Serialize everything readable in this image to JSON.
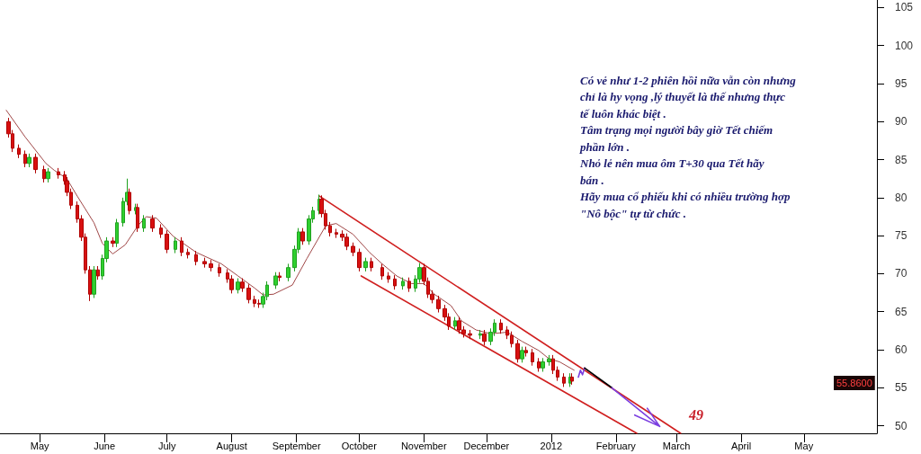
{
  "chart_data": {
    "type": "candlestick",
    "x": [
      "2011-04-16",
      "2011-04-18",
      "2011-04-21",
      "2011-04-24",
      "2011-04-26",
      "2011-04-29",
      "2011-05-03",
      "2011-05-05",
      "2011-05-10",
      "2011-05-13",
      "2011-05-14",
      "2011-05-16",
      "2011-05-19",
      "2011-05-21",
      "2011-05-23",
      "2011-05-25",
      "2011-05-27",
      "2011-05-29",
      "2011-05-31",
      "2011-06-02",
      "2011-06-05",
      "2011-06-07",
      "2011-06-10",
      "2011-06-12",
      "2011-06-13",
      "2011-06-16",
      "2011-06-17",
      "2011-06-20",
      "2011-06-24",
      "2011-06-28",
      "2011-07-01",
      "2011-07-05",
      "2011-07-08",
      "2011-07-11",
      "2011-07-15",
      "2011-07-19",
      "2011-07-22",
      "2011-07-26",
      "2011-07-30",
      "2011-08-01",
      "2011-08-04",
      "2011-08-06",
      "2011-08-09",
      "2011-08-12",
      "2011-08-14",
      "2011-08-16",
      "2011-08-18",
      "2011-08-22",
      "2011-08-24",
      "2011-08-28",
      "2011-08-31",
      "2011-09-02",
      "2011-09-04",
      "2011-09-07",
      "2011-09-09",
      "2011-09-12",
      "2011-09-13",
      "2011-09-15",
      "2011-09-17",
      "2011-09-20",
      "2011-09-23",
      "2011-09-25",
      "2011-09-28",
      "2011-10-01",
      "2011-10-04",
      "2011-10-07",
      "2011-10-12",
      "2011-10-15",
      "2011-10-18",
      "2011-10-22",
      "2011-10-25",
      "2011-10-28",
      "2011-10-30",
      "2011-11-01",
      "2011-11-03",
      "2011-11-05",
      "2011-11-08",
      "2011-11-11",
      "2011-11-13",
      "2011-11-16",
      "2011-11-18",
      "2011-11-20",
      "2011-11-23",
      "2011-11-28",
      "2011-11-30",
      "2011-12-03",
      "2011-12-05",
      "2011-12-08",
      "2011-12-11",
      "2011-12-13",
      "2011-12-16",
      "2011-12-18",
      "2011-12-20",
      "2011-12-23",
      "2011-12-26",
      "2011-12-28",
      "2011-12-31",
      "2012-01-02",
      "2012-01-04",
      "2012-01-07",
      "2012-01-10",
      "2012-01-11"
    ],
    "ohlc": [
      [
        90.0,
        90.5,
        87.9,
        88.4
      ],
      [
        88.4,
        88.9,
        86.0,
        86.5
      ],
      [
        86.5,
        87.0,
        85.2,
        85.7
      ],
      [
        85.7,
        86.2,
        84.0,
        84.5
      ],
      [
        84.5,
        85.8,
        84.0,
        85.3
      ],
      [
        85.3,
        85.8,
        83.2,
        83.7
      ],
      [
        83.7,
        84.2,
        82.0,
        82.5
      ],
      [
        82.5,
        83.9,
        82.0,
        83.4
      ],
      [
        83.4,
        83.9,
        82.5,
        83.0
      ],
      [
        83.0,
        83.5,
        81.7,
        82.2
      ],
      [
        82.2,
        82.7,
        80.2,
        80.7
      ],
      [
        80.7,
        81.2,
        78.5,
        79.0
      ],
      [
        79.0,
        79.5,
        76.7,
        77.2
      ],
      [
        77.2,
        77.7,
        74.3,
        74.8
      ],
      [
        74.8,
        75.3,
        70.0,
        70.5
      ],
      [
        70.5,
        71.0,
        66.4,
        67.3
      ],
      [
        67.3,
        71.0,
        66.8,
        70.5
      ],
      [
        70.5,
        71.0,
        69.2,
        69.7
      ],
      [
        69.7,
        72.5,
        69.2,
        72.0
      ],
      [
        72.0,
        74.8,
        71.5,
        74.3
      ],
      [
        74.3,
        74.8,
        73.5,
        74.0
      ],
      [
        74.0,
        77.2,
        73.5,
        76.7
      ],
      [
        76.7,
        80.0,
        76.2,
        79.5
      ],
      [
        79.5,
        82.5,
        79.0,
        80.7
      ],
      [
        80.7,
        81.2,
        77.8,
        78.3
      ],
      [
        78.3,
        79.2,
        77.8,
        78.7
      ],
      [
        78.7,
        79.2,
        75.5,
        76.0
      ],
      [
        76.0,
        77.7,
        75.5,
        77.2
      ],
      [
        77.2,
        77.7,
        75.5,
        76.0
      ],
      [
        76.0,
        76.5,
        74.7,
        75.2
      ],
      [
        75.2,
        75.7,
        72.7,
        73.2
      ],
      [
        73.2,
        74.8,
        72.7,
        74.3
      ],
      [
        74.3,
        74.8,
        72.3,
        72.8
      ],
      [
        72.8,
        73.3,
        72.0,
        72.5
      ],
      [
        72.5,
        73.0,
        71.1,
        71.6
      ],
      [
        71.6,
        72.1,
        70.8,
        71.3
      ],
      [
        71.3,
        71.8,
        70.3,
        70.8
      ],
      [
        70.8,
        71.3,
        69.6,
        70.1
      ],
      [
        70.1,
        70.6,
        68.8,
        69.3
      ],
      [
        69.3,
        69.8,
        67.4,
        67.9
      ],
      [
        67.9,
        69.4,
        67.4,
        68.9
      ],
      [
        68.9,
        69.4,
        67.6,
        68.1
      ],
      [
        68.1,
        68.6,
        66.1,
        66.6
      ],
      [
        66.6,
        67.1,
        65.6,
        66.1
      ],
      [
        66.1,
        66.6,
        65.5,
        66.0
      ],
      [
        66.0,
        67.5,
        65.5,
        67.0
      ],
      [
        67.0,
        69.0,
        66.5,
        68.5
      ],
      [
        68.5,
        70.2,
        68.0,
        69.7
      ],
      [
        69.7,
        70.2,
        69.0,
        69.5
      ],
      [
        69.5,
        71.3,
        69.0,
        70.8
      ],
      [
        70.8,
        73.7,
        70.3,
        73.2
      ],
      [
        73.2,
        76.0,
        72.7,
        75.5
      ],
      [
        75.5,
        76.0,
        73.8,
        74.3
      ],
      [
        74.3,
        77.7,
        73.8,
        77.2
      ],
      [
        77.2,
        78.8,
        76.7,
        78.3
      ],
      [
        78.3,
        80.4,
        77.8,
        79.8
      ],
      [
        79.8,
        80.3,
        77.4,
        77.9
      ],
      [
        77.9,
        78.4,
        75.8,
        76.3
      ],
      [
        76.3,
        76.8,
        74.9,
        75.4
      ],
      [
        75.4,
        75.9,
        74.7,
        75.2
      ],
      [
        75.2,
        75.7,
        74.3,
        74.8
      ],
      [
        74.8,
        75.3,
        73.1,
        73.6
      ],
      [
        73.6,
        74.1,
        72.3,
        72.8
      ],
      [
        72.8,
        73.3,
        70.3,
        70.8
      ],
      [
        70.8,
        72.1,
        70.3,
        71.6
      ],
      [
        71.6,
        72.1,
        70.3,
        70.8
      ],
      [
        70.8,
        71.3,
        69.2,
        69.7
      ],
      [
        69.7,
        70.2,
        68.8,
        69.3
      ],
      [
        69.3,
        69.8,
        67.9,
        68.4
      ],
      [
        68.4,
        69.5,
        67.9,
        69.0
      ],
      [
        69.0,
        69.5,
        67.6,
        68.1
      ],
      [
        68.1,
        69.8,
        67.6,
        69.3
      ],
      [
        69.3,
        71.4,
        68.8,
        70.8
      ],
      [
        70.8,
        71.3,
        68.5,
        69.0
      ],
      [
        69.0,
        69.5,
        66.8,
        67.3
      ],
      [
        67.3,
        67.8,
        66.1,
        66.6
      ],
      [
        66.6,
        67.1,
        64.9,
        65.4
      ],
      [
        65.4,
        65.9,
        63.8,
        64.3
      ],
      [
        64.3,
        64.8,
        62.6,
        63.1
      ],
      [
        63.1,
        64.3,
        62.6,
        63.8
      ],
      [
        63.8,
        64.3,
        62.1,
        62.6
      ],
      [
        62.6,
        63.1,
        61.6,
        62.1
      ],
      [
        62.1,
        62.6,
        61.4,
        61.9
      ],
      [
        61.9,
        62.6,
        61.4,
        62.1
      ],
      [
        62.1,
        62.6,
        60.6,
        61.1
      ],
      [
        61.1,
        62.8,
        60.6,
        62.3
      ],
      [
        62.3,
        64.0,
        61.8,
        63.5
      ],
      [
        63.5,
        64.0,
        62.1,
        62.6
      ],
      [
        62.6,
        63.1,
        61.4,
        61.9
      ],
      [
        61.9,
        62.4,
        60.3,
        60.8
      ],
      [
        60.8,
        61.3,
        58.3,
        58.8
      ],
      [
        58.8,
        60.4,
        58.3,
        59.9
      ],
      [
        59.9,
        60.4,
        59.1,
        59.6
      ],
      [
        59.6,
        60.1,
        57.9,
        58.4
      ],
      [
        58.4,
        58.9,
        57.1,
        57.6
      ],
      [
        57.6,
        58.9,
        57.1,
        58.4
      ],
      [
        58.4,
        59.3,
        57.9,
        58.8
      ],
      [
        58.8,
        59.3,
        56.8,
        57.3
      ],
      [
        57.3,
        57.8,
        55.9,
        56.4
      ],
      [
        56.4,
        56.9,
        55.1,
        55.6
      ],
      [
        55.6,
        56.9,
        55.1,
        56.4
      ],
      [
        56.4,
        56.9,
        55.4,
        55.86
      ]
    ],
    "series": [
      {
        "type": "line",
        "color": "#a04848",
        "x": [
          "2011-04-15",
          "2011-04-24",
          "2011-05-04",
          "2011-05-08",
          "2011-05-14",
          "2011-05-19",
          "2011-05-27",
          "2011-05-31",
          "2011-06-05",
          "2011-06-11",
          "2011-06-17",
          "2011-06-21",
          "2011-06-26",
          "2011-07-04",
          "2011-07-15",
          "2011-07-27",
          "2011-08-04",
          "2011-08-12",
          "2011-08-16",
          "2011-08-21",
          "2011-08-30",
          "2011-09-06",
          "2011-09-15",
          "2011-09-20",
          "2011-09-28",
          "2011-10-06",
          "2011-10-12",
          "2011-10-19",
          "2011-10-26",
          "2011-11-01",
          "2011-11-06",
          "2011-11-14",
          "2011-11-19",
          "2011-11-26",
          "2011-12-03",
          "2011-12-11",
          "2011-12-18",
          "2011-12-26",
          "2011-12-31",
          "2012-01-05",
          "2012-01-12"
        ],
        "values": [
          91.5,
          88.0,
          84.5,
          83.6,
          82.5,
          80.2,
          76.7,
          74.0,
          72.6,
          73.8,
          76.3,
          77.5,
          77.3,
          74.9,
          72.8,
          71.3,
          69.7,
          68.1,
          67.2,
          67.3,
          68.5,
          72.0,
          76.3,
          76.6,
          75.2,
          72.8,
          71.3,
          69.7,
          68.7,
          68.7,
          67.3,
          65.8,
          63.8,
          62.6,
          62.1,
          62.3,
          61.1,
          59.9,
          58.8,
          58.4,
          57.3
        ]
      },
      {
        "type": "line",
        "color": "#d02020",
        "x": [
          "2011-09-12",
          "2012-03-03"
        ],
        "values": [
          80.2,
          49
        ]
      },
      {
        "type": "line",
        "color": "#d02020",
        "x": [
          "2011-10-02",
          "2012-02-11"
        ],
        "values": [
          69.7,
          49
        ]
      },
      {
        "type": "line",
        "color": "#7b3fe0",
        "x": [
          "2012-01-14",
          "2012-01-15",
          "2012-01-16",
          "2012-01-17"
        ],
        "values": [
          56.4,
          57.3,
          56.7,
          57.6
        ]
      },
      {
        "type": "line",
        "color": "#000000",
        "x": [
          "2012-01-17",
          "2012-01-30"
        ],
        "values": [
          57.6,
          55.0
        ]
      },
      {
        "type": "line",
        "color": "#7b3fe0",
        "x": [
          "2012-01-30",
          "2012-02-22",
          "2012-02-10",
          "2012-02-22",
          "2012-02-16"
        ],
        "values": [
          55.0,
          49.9,
          51.4,
          49.9,
          52.3
        ]
      }
    ],
    "xlim": [
      "2011-04-12",
      "2012-06-05"
    ],
    "xticks": [
      {
        "value": "2011-05-01",
        "label": "May"
      },
      {
        "value": "2011-06-01",
        "label": "June"
      },
      {
        "value": "2011-07-01",
        "label": "July"
      },
      {
        "value": "2011-08-01",
        "label": "August"
      },
      {
        "value": "2011-09-01",
        "label": "September"
      },
      {
        "value": "2011-10-01",
        "label": "October"
      },
      {
        "value": "2011-11-01",
        "label": "November"
      },
      {
        "value": "2011-12-01",
        "label": "December"
      },
      {
        "value": "2012-01-01",
        "label": "2012"
      },
      {
        "value": "2012-02-01",
        "label": "February"
      },
      {
        "value": "2012-03-01",
        "label": "March"
      },
      {
        "value": "2012-04-01",
        "label": "April"
      },
      {
        "value": "2012-05-01",
        "label": "May"
      }
    ],
    "ylim": [
      49,
      106
    ],
    "yticks": [
      50,
      55,
      60,
      65,
      70,
      75,
      80,
      85,
      90,
      95,
      100,
      105
    ],
    "marker": "none",
    "line_style": "solid",
    "annotations": [
      "Có vẻ như 1-2 phiên hồi nữa vẫn còn nhưng\nchỉ là hy vọng ,lý thuyết là thế nhưng thực\ntế luôn khác biệt .\nTâm trạng mọi người bây giờ Tết chiếm\nphần lớn .\nNhỏ lẻ nên mua ôm T+30 qua Tết hãy\nbán .\nHãy mua cổ phiếu khi có nhiều trường hợp\n\"Nô bộc\" tự từ chức .",
      "49",
      "55.8600"
    ]
  }
}
